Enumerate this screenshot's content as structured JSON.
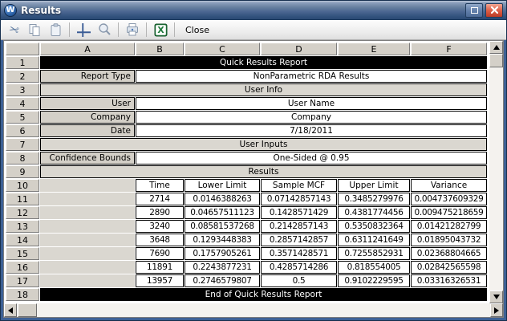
{
  "window": {
    "title": "Results",
    "app_icon_letter": "W"
  },
  "toolbar": {
    "icons": [
      "cut-scissors",
      "copy-pages",
      "paste-clipboard",
      "gridlines-cross",
      "zoom-magnifier",
      "print-printer",
      "export-excel"
    ],
    "close_label": "Close"
  },
  "colors": {
    "titlebar_top": "#bcc8d8",
    "titlebar_bottom": "#2b4a74",
    "banner_bg": "#000000",
    "banner_text": "#ffffff",
    "header_gray": "#d4d0c8",
    "section_gray": "#dad7d0",
    "close_button_red": "#bd3b25",
    "excel_green": "#1f7a3c"
  },
  "grid": {
    "column_headers": [
      "A",
      "B",
      "C",
      "D",
      "E",
      "F"
    ],
    "rows": [
      {
        "n": "1",
        "type": "black_banner",
        "text": "Quick Results Report"
      },
      {
        "n": "2",
        "type": "label_value",
        "label": "Report Type",
        "value": "NonParametric RDA Results"
      },
      {
        "n": "3",
        "type": "section",
        "text": "User Info"
      },
      {
        "n": "4",
        "type": "label_value",
        "label": "User",
        "value": "User Name"
      },
      {
        "n": "5",
        "type": "label_value",
        "label": "Company",
        "value": "Company"
      },
      {
        "n": "6",
        "type": "label_value",
        "label": "Date",
        "value": "7/18/2011"
      },
      {
        "n": "7",
        "type": "section",
        "text": "User Inputs"
      },
      {
        "n": "8",
        "type": "label_value",
        "label": "Confidence Bounds",
        "value": "One-Sided @ 0.95"
      },
      {
        "n": "9",
        "type": "section",
        "text": "Results"
      },
      {
        "n": "10",
        "type": "table_header",
        "cells": [
          "Time",
          "Lower Limit",
          "Sample MCF",
          "Upper Limit",
          "Variance"
        ]
      },
      {
        "n": "11",
        "type": "table_row",
        "cells": [
          "2714",
          "0.0146388263",
          "0.07142857143",
          "0.3485279976",
          "0.004737609329"
        ]
      },
      {
        "n": "12",
        "type": "table_row",
        "cells": [
          "2890",
          "0.04657511123",
          "0.1428571429",
          "0.4381774456",
          "0.009475218659"
        ]
      },
      {
        "n": "13",
        "type": "table_row",
        "cells": [
          "3240",
          "0.08581537268",
          "0.2142857143",
          "0.5350832364",
          "0.01421282799"
        ]
      },
      {
        "n": "14",
        "type": "table_row",
        "cells": [
          "3648",
          "0.1293448383",
          "0.2857142857",
          "0.6311241649",
          "0.01895043732"
        ]
      },
      {
        "n": "15",
        "type": "table_row",
        "cells": [
          "7690",
          "0.1757905261",
          "0.3571428571",
          "0.7255852931",
          "0.02368804665"
        ]
      },
      {
        "n": "16",
        "type": "table_row",
        "cells": [
          "11891",
          "0.2243877231",
          "0.4285714286",
          "0.818554005",
          "0.02842565598"
        ]
      },
      {
        "n": "17",
        "type": "table_row",
        "cells": [
          "13957",
          "0.2746579807",
          "0.5",
          "0.9102229595",
          "0.03316326531"
        ]
      },
      {
        "n": "18",
        "type": "black_banner",
        "text": "End of Quick Results Report"
      }
    ]
  }
}
